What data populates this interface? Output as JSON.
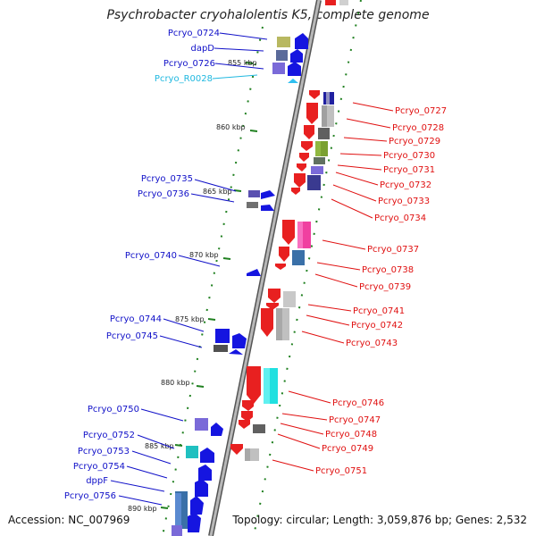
{
  "title": "Psychrobacter cryohalolentis K5, complete genome",
  "accession": "Accession: NC_007969",
  "footer": "Topology: circular; Length: 3,059,876 bp; Genes: 2,532",
  "colors": {
    "forward_label": "#1010c8",
    "reverse_label": "#e01010",
    "rna_label": "#20b8e0",
    "backbone": "#808080",
    "tick": "#208020"
  },
  "scale_marks": [
    "855 kbp",
    "860 kbp",
    "865 kbp",
    "870 kbp",
    "875 kbp",
    "880 kbp",
    "885 kbp",
    "890 kbp"
  ],
  "left_labels": [
    "Pcryo_0724",
    "dapD",
    "Pcryo_0726",
    "Pcryo_R0028",
    "Pcryo_0735",
    "Pcryo_0736",
    "Pcryo_0740",
    "Pcryo_0744",
    "Pcryo_0745",
    "Pcryo_0750",
    "Pcryo_0752",
    "Pcryo_0753",
    "Pcryo_0754",
    "dppF",
    "Pcryo_0756"
  ],
  "right_labels": [
    "Pcryo_0727",
    "Pcryo_0728",
    "Pcryo_0729",
    "Pcryo_0730",
    "Pcryo_0731",
    "Pcryo_0732",
    "Pcryo_0733",
    "Pcryo_0734",
    "Pcryo_0737",
    "Pcryo_0738",
    "Pcryo_0739",
    "Pcryo_0741",
    "Pcryo_0742",
    "Pcryo_0743",
    "Pcryo_0746",
    "Pcryo_0747",
    "Pcryo_0748",
    "Pcryo_0749",
    "Pcryo_0751"
  ]
}
